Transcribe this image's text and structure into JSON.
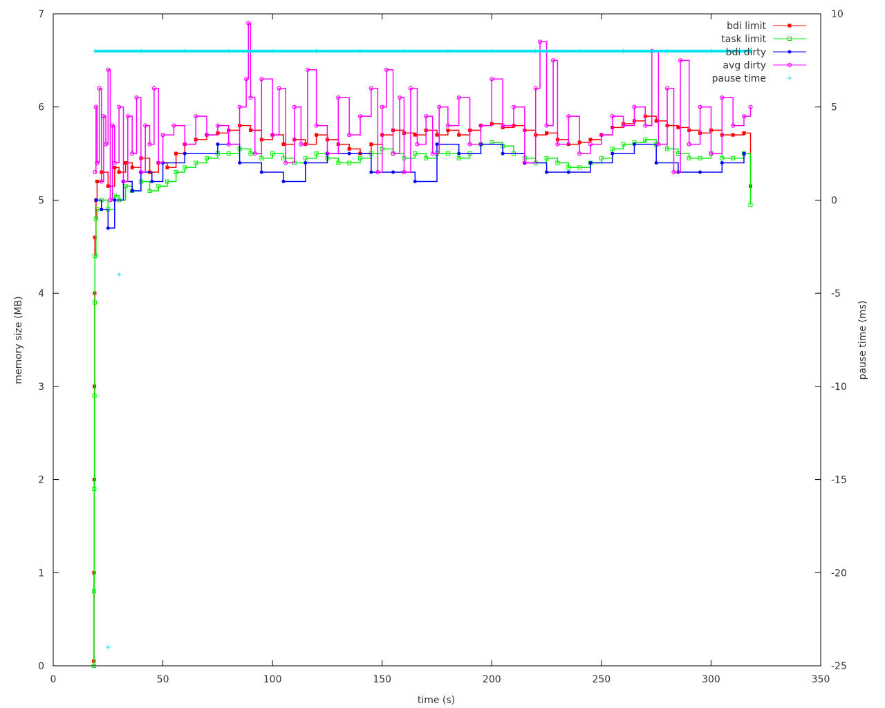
{
  "chart_data": {
    "type": "line",
    "title": "",
    "xlabel": "time (s)",
    "ylabel": "memory size (MB)",
    "y2label": "pause time (ms)",
    "xlim": [
      0,
      350
    ],
    "ylim": [
      0,
      7
    ],
    "y2lim": [
      -25,
      10
    ],
    "xticks": [
      0,
      50,
      100,
      150,
      200,
      250,
      300,
      350
    ],
    "yticks": [
      0,
      1,
      2,
      3,
      4,
      5,
      6,
      7
    ],
    "y2ticks": [
      -25,
      -20,
      -15,
      -10,
      -5,
      0,
      5,
      10
    ],
    "grid": false,
    "legend_position": "top-right",
    "series": [
      {
        "name": "bdi limit",
        "color": "#ff0000",
        "marker": "filled-square",
        "axis": "y",
        "x": [
          18.5,
          18.6,
          18.7,
          18.8,
          18.9,
          19.0,
          19.5,
          20,
          22,
          25,
          28,
          30,
          33,
          36,
          40,
          44,
          48,
          52,
          56,
          60,
          65,
          70,
          75,
          80,
          85,
          90,
          95,
          100,
          105,
          110,
          115,
          120,
          125,
          130,
          135,
          140,
          145,
          150,
          155,
          160,
          165,
          170,
          175,
          180,
          185,
          190,
          195,
          200,
          205,
          210,
          215,
          220,
          225,
          230,
          235,
          240,
          245,
          250,
          255,
          260,
          265,
          270,
          275,
          280,
          285,
          290,
          295,
          300,
          305,
          310,
          315,
          318
        ],
        "y": [
          0.05,
          1.0,
          2.0,
          3.0,
          4.0,
          4.6,
          5.0,
          5.2,
          5.3,
          5.15,
          5.35,
          5.3,
          5.4,
          5.35,
          5.45,
          5.3,
          5.4,
          5.35,
          5.5,
          5.6,
          5.65,
          5.7,
          5.72,
          5.75,
          5.8,
          5.75,
          5.65,
          5.7,
          5.6,
          5.65,
          5.6,
          5.7,
          5.65,
          5.6,
          5.55,
          5.5,
          5.6,
          5.7,
          5.75,
          5.72,
          5.7,
          5.75,
          5.7,
          5.75,
          5.7,
          5.75,
          5.8,
          5.82,
          5.78,
          5.8,
          5.75,
          5.7,
          5.72,
          5.65,
          5.6,
          5.62,
          5.65,
          5.7,
          5.78,
          5.82,
          5.85,
          5.9,
          5.85,
          5.8,
          5.78,
          5.75,
          5.72,
          5.75,
          5.7,
          5.7,
          5.72,
          5.15
        ]
      },
      {
        "name": "task limit",
        "color": "#00ee00",
        "marker": "open-square",
        "axis": "y",
        "x": [
          18.5,
          18.6,
          18.7,
          18.8,
          18.9,
          19.0,
          19.5,
          20,
          22,
          25,
          28,
          30,
          33,
          36,
          40,
          44,
          48,
          52,
          56,
          60,
          65,
          70,
          75,
          80,
          85,
          90,
          95,
          100,
          105,
          110,
          115,
          120,
          125,
          130,
          135,
          140,
          145,
          150,
          155,
          160,
          165,
          170,
          175,
          180,
          185,
          190,
          195,
          200,
          205,
          210,
          215,
          220,
          225,
          230,
          235,
          240,
          245,
          250,
          255,
          260,
          265,
          270,
          275,
          280,
          285,
          290,
          295,
          300,
          305,
          310,
          315,
          318
        ],
        "y": [
          0.0,
          0.8,
          1.9,
          2.9,
          3.9,
          4.4,
          4.8,
          4.9,
          5.0,
          4.9,
          5.05,
          5.0,
          5.15,
          5.1,
          5.2,
          5.1,
          5.15,
          5.2,
          5.3,
          5.35,
          5.4,
          5.45,
          5.5,
          5.5,
          5.55,
          5.5,
          5.45,
          5.5,
          5.45,
          5.4,
          5.45,
          5.5,
          5.45,
          5.4,
          5.4,
          5.45,
          5.5,
          5.55,
          5.5,
          5.45,
          5.5,
          5.45,
          5.5,
          5.5,
          5.45,
          5.5,
          5.6,
          5.62,
          5.58,
          5.5,
          5.45,
          5.4,
          5.45,
          5.4,
          5.35,
          5.35,
          5.4,
          5.45,
          5.55,
          5.6,
          5.62,
          5.65,
          5.6,
          5.55,
          5.5,
          5.45,
          5.45,
          5.5,
          5.45,
          5.45,
          5.5,
          4.95
        ]
      },
      {
        "name": "bdi dirty",
        "color": "#0000ff",
        "marker": "filled-circle",
        "axis": "y",
        "x": [
          19.5,
          22,
          25,
          28,
          32,
          36,
          40,
          45,
          50,
          60,
          75,
          85,
          95,
          105,
          115,
          125,
          135,
          145,
          155,
          165,
          175,
          185,
          195,
          205,
          215,
          225,
          235,
          245,
          255,
          265,
          275,
          285,
          295,
          305,
          315
        ],
        "y": [
          5.0,
          4.9,
          4.7,
          5.0,
          5.2,
          5.1,
          5.3,
          5.2,
          5.4,
          5.5,
          5.6,
          5.4,
          5.3,
          5.2,
          5.4,
          5.5,
          5.5,
          5.3,
          5.3,
          5.2,
          5.6,
          5.5,
          5.6,
          5.5,
          5.4,
          5.3,
          5.3,
          5.4,
          5.5,
          5.6,
          5.4,
          5.3,
          5.3,
          5.4,
          5.5
        ]
      },
      {
        "name": "avg dirty",
        "color": "#ff00ff",
        "marker": "open-circle",
        "axis": "y",
        "x": [
          19.0,
          19.5,
          20,
          21,
          22,
          23,
          24,
          25,
          26,
          27,
          28,
          30,
          32,
          34,
          36,
          38,
          40,
          42,
          44,
          46,
          48,
          50,
          55,
          60,
          65,
          70,
          75,
          80,
          85,
          88,
          89,
          90,
          92,
          95,
          100,
          103,
          106,
          110,
          113,
          116,
          120,
          125,
          130,
          135,
          140,
          145,
          148,
          150,
          152,
          155,
          158,
          160,
          163,
          166,
          170,
          173,
          176,
          180,
          185,
          190,
          195,
          200,
          205,
          210,
          215,
          220,
          222,
          225,
          228,
          230,
          235,
          240,
          245,
          250,
          255,
          260,
          265,
          270,
          273,
          276,
          280,
          283,
          286,
          290,
          295,
          300,
          305,
          310,
          315,
          318
        ],
        "y": [
          5.3,
          6.0,
          5.4,
          6.2,
          5.2,
          5.9,
          5.6,
          6.4,
          5.0,
          5.8,
          5.4,
          6.0,
          5.2,
          5.9,
          5.5,
          6.1,
          5.3,
          5.8,
          5.6,
          6.2,
          5.4,
          5.7,
          5.8,
          5.6,
          5.9,
          5.7,
          5.8,
          5.6,
          6.0,
          6.3,
          6.9,
          6.1,
          5.5,
          6.3,
          5.7,
          6.2,
          5.4,
          6.0,
          5.6,
          6.4,
          5.8,
          5.5,
          6.1,
          5.7,
          5.9,
          6.2,
          5.3,
          6.0,
          6.4,
          5.5,
          6.1,
          5.3,
          6.2,
          5.6,
          5.9,
          5.5,
          6.0,
          5.8,
          6.1,
          5.6,
          5.8,
          6.3,
          5.8,
          6.0,
          5.4,
          6.2,
          6.7,
          5.8,
          6.5,
          5.6,
          5.9,
          5.5,
          5.6,
          5.7,
          5.9,
          5.8,
          6.0,
          5.8,
          6.6,
          5.6,
          6.2,
          5.3,
          6.5,
          5.6,
          6.0,
          5.5,
          6.1,
          5.8,
          5.9,
          6.0
        ]
      },
      {
        "name": "pause time",
        "color": "#00e5ee",
        "marker": "plus",
        "axis": "y2",
        "x": [
          19,
          25,
          30,
          40,
          60,
          80,
          100,
          120,
          140,
          160,
          180,
          200,
          220,
          240,
          260,
          280,
          300,
          318
        ],
        "y": [
          8,
          -24,
          -4,
          8,
          8,
          8,
          8,
          8,
          8,
          8,
          8,
          8,
          8,
          8,
          8,
          8,
          8,
          8
        ]
      }
    ]
  }
}
